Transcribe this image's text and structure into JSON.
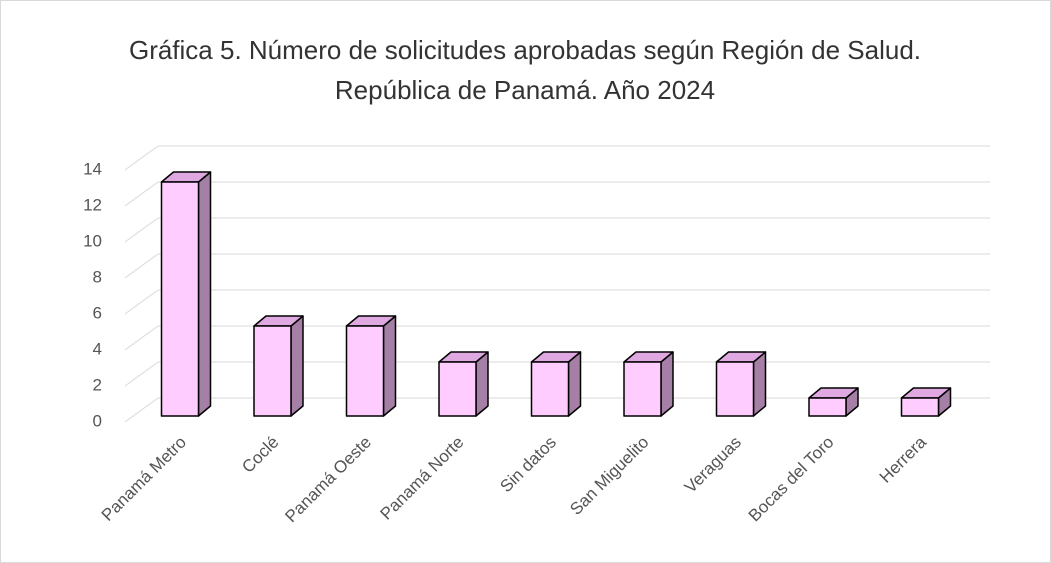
{
  "chart_data": {
    "type": "bar3d",
    "title": "Gráfica 5. Número de solicitudes aprobadas según Región de Salud. República de Panamá. Año 2024",
    "categories": [
      "Panamá Metro",
      "Coclé",
      "Panamá Oeste",
      "Panamá Norte",
      "Sin datos",
      "San Miguelito",
      "Veraguas",
      "Bocas del Toro",
      "Herrera"
    ],
    "values": [
      13,
      5,
      5,
      3,
      3,
      3,
      3,
      1,
      1
    ],
    "color": "#ffccff",
    "ylim": [
      0,
      14
    ],
    "yticks": [
      0,
      2,
      4,
      6,
      8,
      10,
      12,
      14
    ],
    "grid": true
  }
}
